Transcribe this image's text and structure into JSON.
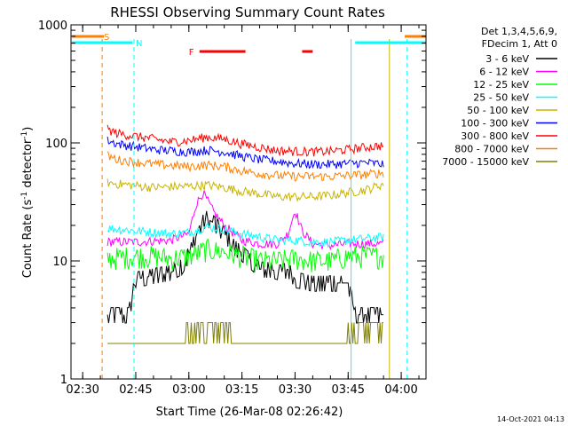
{
  "chart_data": {
    "type": "line",
    "title": "RHESSI Observing Summary Count Rates",
    "xlabel": "Start Time (26-Mar-08 02:26:42)",
    "ylabel_main": "Count Rate (s",
    "ylabel_sup1": "-1",
    "ylabel_mid": " detector",
    "ylabel_sup2": "-1",
    "ylabel_end": ")",
    "y_scale": "log",
    "ylim": [
      1,
      1000
    ],
    "xlim": [
      "02:26:42",
      "04:07:00"
    ],
    "x_ticks": [
      "02:30",
      "02:45",
      "03:00",
      "03:15",
      "03:30",
      "03:45",
      "04:00"
    ],
    "y_ticks": [
      "1",
      "10",
      "100",
      "1000"
    ],
    "legend_header": [
      "Det 1,3,4,5,6,9,",
      "FDecim 1, Att 0"
    ],
    "legend_position": "right",
    "footer_date": "14-Oct-2021 04:13",
    "flags": [
      {
        "label": "S",
        "color": "#ff7f00",
        "segments": [
          [
            "02:27",
            "02:36"
          ],
          [
            "04:01",
            "04:07"
          ]
        ]
      },
      {
        "label": "N",
        "color": "#00ffff",
        "segments": [
          [
            "02:27",
            "02:44"
          ],
          [
            "03:47",
            "04:07"
          ]
        ]
      },
      {
        "label": "F",
        "color": "#ff0000",
        "segments": [
          [
            "03:03",
            "03:16"
          ],
          [
            "03:32",
            "03:35"
          ]
        ]
      }
    ],
    "vlines": [
      {
        "time": "02:35:30",
        "color": "#ff7f00",
        "style": "dashed"
      },
      {
        "time": "02:44:30",
        "color": "#00ffff",
        "style": "dashed"
      },
      {
        "time": "03:45:50",
        "color": "#00ffff",
        "style": "solid"
      },
      {
        "time": "03:56:40",
        "color": "#c8b400",
        "style": "solid"
      },
      {
        "time": "04:01:40",
        "color": "#00ffff",
        "style": "dashed"
      }
    ],
    "data_start": "02:37",
    "data_end": "03:55",
    "series": [
      {
        "name": "3 - 6 keV",
        "color": "#000000",
        "x": [
          "02:37",
          "02:39",
          "02:43",
          "02:45",
          "02:50",
          "02:55",
          "02:58",
          "03:01",
          "03:03",
          "03:05",
          "03:07",
          "03:10",
          "03:13",
          "03:16",
          "03:20",
          "03:23",
          "03:26",
          "03:28",
          "03:30",
          "03:35",
          "03:40",
          "03:45",
          "03:47",
          "03:50",
          "03:55"
        ],
        "y": [
          3.5,
          3.5,
          3.5,
          7,
          7.5,
          8,
          9,
          13,
          20,
          23,
          21,
          17,
          13,
          11,
          8.5,
          8.5,
          8,
          8.5,
          7,
          6.5,
          6.5,
          6.5,
          3.5,
          3.5,
          3.5
        ]
      },
      {
        "name": "6 - 12 keV",
        "color": "#ff00ff",
        "x": [
          "02:37",
          "02:45",
          "02:55",
          "03:00",
          "03:02",
          "03:04",
          "03:07",
          "03:10",
          "03:15",
          "03:20",
          "03:25",
          "03:28",
          "03:30",
          "03:32",
          "03:35",
          "03:40",
          "03:45",
          "03:50",
          "03:55"
        ],
        "y": [
          14.5,
          14.5,
          15,
          17,
          30,
          38,
          26,
          20,
          15,
          14,
          14,
          17,
          27,
          18,
          14,
          13.5,
          14,
          14,
          14
        ]
      },
      {
        "name": "12 - 25 keV",
        "color": "#00ff00",
        "x": [
          "02:37",
          "02:45",
          "02:50",
          "02:55",
          "03:00",
          "03:05",
          "03:10",
          "03:15",
          "03:20",
          "03:25",
          "03:30",
          "03:35",
          "03:40",
          "03:45",
          "03:50",
          "03:55"
        ],
        "y": [
          10.5,
          11,
          11,
          10.5,
          11,
          12.5,
          12,
          11,
          10,
          10,
          10.5,
          10,
          10,
          11,
          11,
          11
        ]
      },
      {
        "name": "25 - 50 keV",
        "color": "#00ffff",
        "x": [
          "02:37",
          "02:45",
          "02:55",
          "03:00",
          "03:05",
          "03:10",
          "03:15",
          "03:20",
          "03:25",
          "03:30",
          "03:35",
          "03:40",
          "03:45",
          "03:50",
          "03:55"
        ],
        "y": [
          19,
          18,
          17,
          17.5,
          19.5,
          18.5,
          17,
          16,
          15,
          15,
          14.5,
          14.5,
          15,
          15.5,
          16
        ]
      },
      {
        "name": "50 - 100 keV",
        "color": "#c8b400",
        "x": [
          "02:37",
          "02:40",
          "02:50",
          "03:00",
          "03:05",
          "03:10",
          "03:15",
          "03:20",
          "03:25",
          "03:30",
          "03:35",
          "03:40",
          "03:45",
          "03:50",
          "03:55"
        ],
        "y": [
          46,
          45,
          42,
          43,
          44,
          42,
          39,
          37,
          35,
          35,
          35,
          36,
          38,
          40,
          45
        ]
      },
      {
        "name": "100 - 300 keV",
        "color": "#0000ff",
        "x": [
          "02:37",
          "02:40",
          "02:50",
          "03:00",
          "03:05",
          "03:10",
          "03:15",
          "03:20",
          "03:25",
          "03:30",
          "03:35",
          "03:40",
          "03:45",
          "03:50",
          "03:55"
        ],
        "y": [
          105,
          98,
          88,
          84,
          87,
          84,
          77,
          72,
          70,
          67,
          66,
          66,
          67,
          68,
          66
        ]
      },
      {
        "name": "300 - 800 keV",
        "color": "#ff0000",
        "x": [
          "02:37",
          "02:40",
          "02:50",
          "02:55",
          "03:00",
          "03:05",
          "03:10",
          "03:15",
          "03:20",
          "03:25",
          "03:30",
          "03:35",
          "03:40",
          "03:45",
          "03:50",
          "03:55"
        ],
        "y": [
          130,
          120,
          108,
          102,
          105,
          112,
          108,
          98,
          92,
          86,
          85,
          84,
          85,
          88,
          92,
          95
        ]
      },
      {
        "name": "800 - 7000 keV",
        "color": "#ff7f00",
        "x": [
          "02:37",
          "02:40",
          "02:50",
          "03:00",
          "03:05",
          "03:10",
          "03:15",
          "03:20",
          "03:25",
          "03:30",
          "03:35",
          "03:40",
          "03:45",
          "03:50",
          "03:55"
        ],
        "y": [
          78,
          72,
          66,
          63,
          65,
          63,
          58,
          55,
          53,
          52,
          52,
          52,
          53,
          54,
          56
        ]
      },
      {
        "name": "7000 - 15000 keV",
        "color": "#808000",
        "x": [
          "02:37",
          "02:55",
          "03:00",
          "03:10",
          "03:20",
          "03:30",
          "03:40",
          "03:45",
          "03:50",
          "03:55"
        ],
        "y": [
          2,
          2,
          2.5,
          2.5,
          2,
          2,
          2,
          2.5,
          2.5,
          2.5
        ]
      }
    ]
  }
}
